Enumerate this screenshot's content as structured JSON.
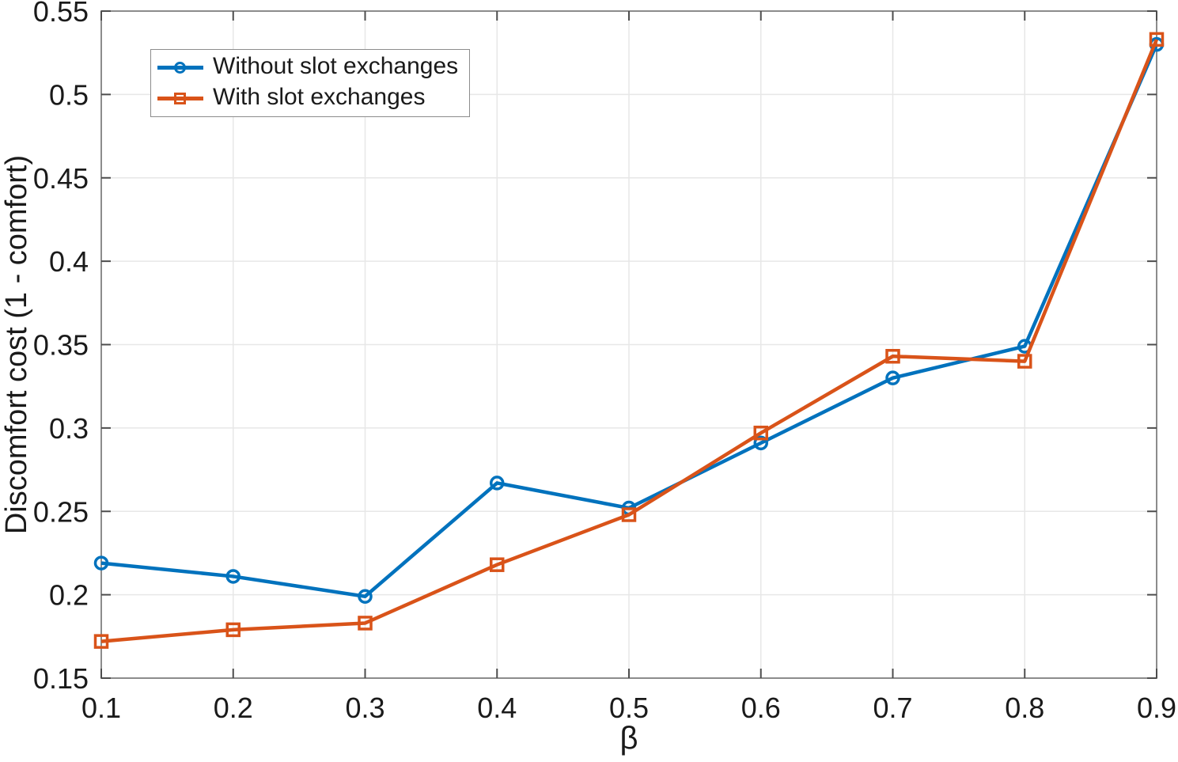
{
  "chart_data": {
    "type": "line",
    "title": "",
    "xlabel": "β",
    "ylabel": "Discomfort cost (1 - comfort)",
    "x": [
      0.1,
      0.2,
      0.3,
      0.4,
      0.5,
      0.6,
      0.7,
      0.8,
      0.9
    ],
    "series": [
      {
        "name": "Without slot exchanges",
        "color": "#0072BD",
        "marker": "circle",
        "values": [
          0.219,
          0.211,
          0.199,
          0.267,
          0.252,
          0.291,
          0.33,
          0.349,
          0.53
        ]
      },
      {
        "name": "With slot exchanges",
        "color": "#D95319",
        "marker": "square",
        "values": [
          0.172,
          0.179,
          0.183,
          0.218,
          0.248,
          0.297,
          0.343,
          0.34,
          0.533
        ]
      }
    ],
    "xlim": [
      0.1,
      0.9
    ],
    "ylim": [
      0.15,
      0.55
    ],
    "x_ticks": [
      "0.1",
      "0.2",
      "0.3",
      "0.4",
      "0.5",
      "0.6",
      "0.7",
      "0.8",
      "0.9"
    ],
    "y_ticks": [
      "0.15",
      "0.2",
      "0.25",
      "0.3",
      "0.35",
      "0.4",
      "0.45",
      "0.5",
      "0.55"
    ],
    "grid": true,
    "legend_position": "top-left",
    "colors": {
      "grid": "#e7e7e7",
      "axis_box": "#8c8c8c",
      "tick_mark": "#4d4d4d",
      "text": "#1a1a1a"
    }
  }
}
